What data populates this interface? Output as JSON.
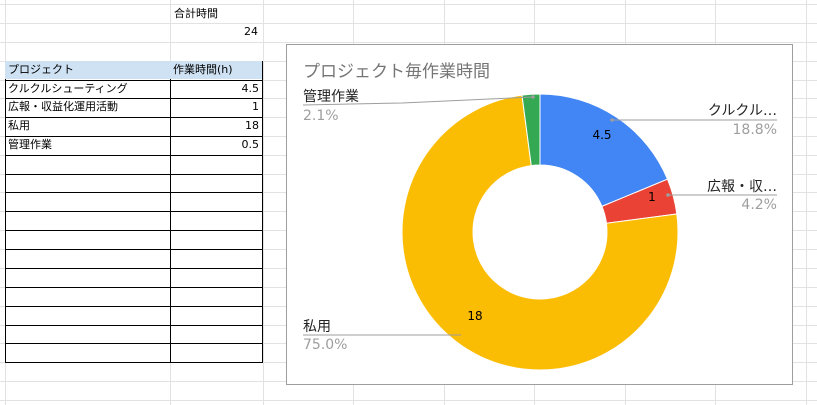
{
  "summary": {
    "total_label": "合計時間",
    "total_value": "24"
  },
  "table": {
    "headers": [
      "プロジェクト",
      "作業時間(h)"
    ],
    "rows": [
      {
        "project": "クルクルシューティング",
        "hours": "4.5"
      },
      {
        "project": "広報・収益化運用活動",
        "hours": "1"
      },
      {
        "project": "私用",
        "hours": "18"
      },
      {
        "project": "管理作業",
        "hours": "0.5"
      }
    ]
  },
  "chart_data": {
    "type": "pie",
    "title": "プロジェクト毎作業時間",
    "slices": [
      {
        "label": "クルクル…",
        "value": 4.5,
        "percent": "18.8%",
        "color": "#4285f4"
      },
      {
        "label": "広報・収…",
        "value": 1,
        "percent": "4.2%",
        "color": "#ea4335"
      },
      {
        "label": "私用",
        "value": 18,
        "percent": "75.0%",
        "color": "#fbbc04"
      },
      {
        "label": "管理作業",
        "value": 0.5,
        "percent": "2.1%",
        "color": "#34a853"
      }
    ],
    "value_labels": [
      "4.5",
      "1",
      "18"
    ],
    "donut": true
  }
}
